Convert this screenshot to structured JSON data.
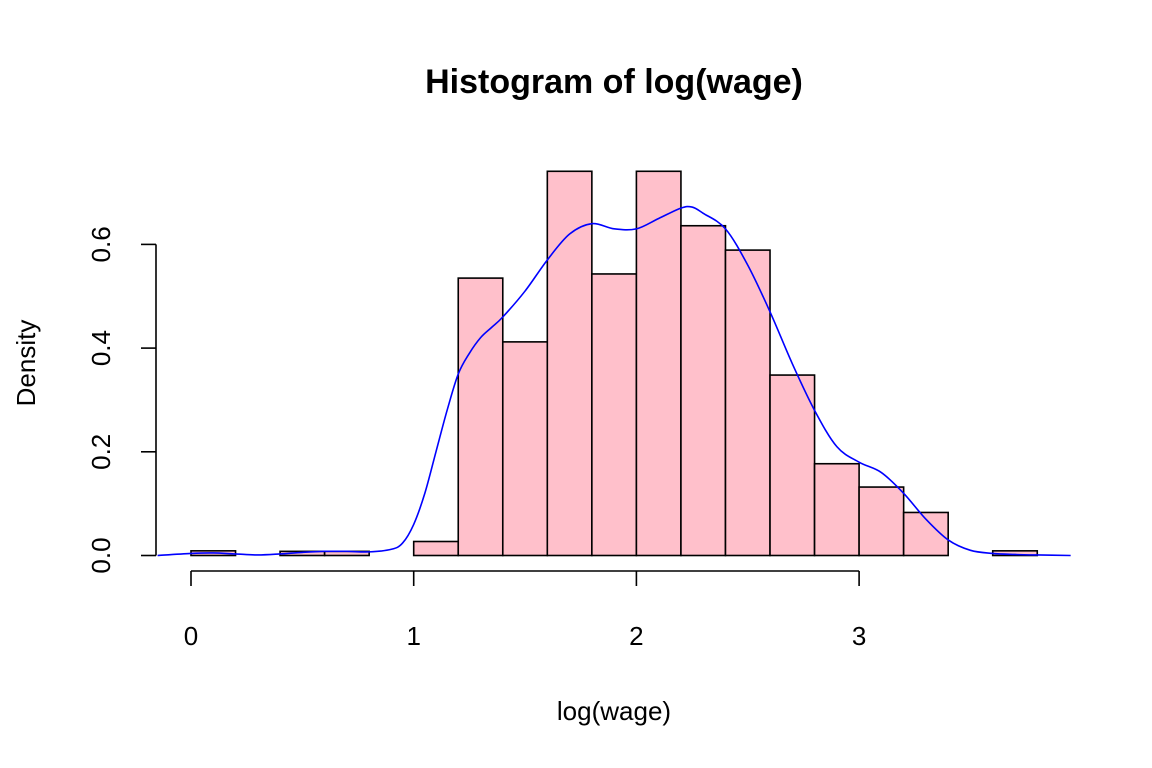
{
  "chart_data": {
    "type": "histogram",
    "title": "Histogram of log(wage)",
    "xlabel": "log(wage)",
    "ylabel": "Density",
    "x_ticks": [
      0,
      1,
      2,
      3
    ],
    "x_tick_labels": [
      "0",
      "1",
      "2",
      "3"
    ],
    "y_ticks": [
      0.0,
      0.2,
      0.4,
      0.6
    ],
    "y_tick_labels": [
      "0.0",
      "0.2",
      "0.4",
      "0.6"
    ],
    "xlim": [
      -0.15,
      3.95
    ],
    "ylim": [
      0,
      0.78
    ],
    "bar_color": "#ffc0cb",
    "bar_edge_color": "#000000",
    "bins": [
      {
        "x0": 0.0,
        "x1": 0.2,
        "density": 0.009
      },
      {
        "x0": 0.2,
        "x1": 0.4,
        "density": 0.0
      },
      {
        "x0": 0.4,
        "x1": 0.6,
        "density": 0.008
      },
      {
        "x0": 0.6,
        "x1": 0.8,
        "density": 0.008
      },
      {
        "x0": 0.8,
        "x1": 1.0,
        "density": 0.0
      },
      {
        "x0": 1.0,
        "x1": 1.2,
        "density": 0.027
      },
      {
        "x0": 1.2,
        "x1": 1.4,
        "density": 0.535
      },
      {
        "x0": 1.4,
        "x1": 1.6,
        "density": 0.412
      },
      {
        "x0": 1.6,
        "x1": 1.8,
        "density": 0.741
      },
      {
        "x0": 1.8,
        "x1": 2.0,
        "density": 0.543
      },
      {
        "x0": 2.0,
        "x1": 2.2,
        "density": 0.741
      },
      {
        "x0": 2.2,
        "x1": 2.4,
        "density": 0.636
      },
      {
        "x0": 2.4,
        "x1": 2.6,
        "density": 0.589
      },
      {
        "x0": 2.6,
        "x1": 2.8,
        "density": 0.348
      },
      {
        "x0": 2.8,
        "x1": 3.0,
        "density": 0.177
      },
      {
        "x0": 3.0,
        "x1": 3.2,
        "density": 0.132
      },
      {
        "x0": 3.2,
        "x1": 3.4,
        "density": 0.083
      },
      {
        "x0": 3.4,
        "x1": 3.6,
        "density": 0.0
      },
      {
        "x0": 3.6,
        "x1": 3.8,
        "density": 0.009
      }
    ],
    "density_line": {
      "color": "#0000ff",
      "x": [
        -0.15,
        0.0,
        0.1,
        0.2,
        0.3,
        0.4,
        0.5,
        0.6,
        0.7,
        0.8,
        0.9,
        0.95,
        1.0,
        1.05,
        1.1,
        1.15,
        1.2,
        1.25,
        1.3,
        1.35,
        1.4,
        1.5,
        1.6,
        1.7,
        1.8,
        1.9,
        2.0,
        2.1,
        2.2,
        2.25,
        2.3,
        2.4,
        2.5,
        2.6,
        2.7,
        2.8,
        2.9,
        3.0,
        3.1,
        3.2,
        3.3,
        3.4,
        3.5,
        3.6,
        3.7,
        3.8,
        3.95
      ],
      "y": [
        0.0,
        0.004,
        0.005,
        0.003,
        0.001,
        0.003,
        0.006,
        0.008,
        0.008,
        0.007,
        0.012,
        0.024,
        0.06,
        0.12,
        0.2,
        0.28,
        0.35,
        0.39,
        0.42,
        0.44,
        0.46,
        0.51,
        0.57,
        0.62,
        0.64,
        0.63,
        0.63,
        0.65,
        0.67,
        0.672,
        0.66,
        0.63,
        0.56,
        0.47,
        0.37,
        0.28,
        0.21,
        0.18,
        0.16,
        0.12,
        0.07,
        0.03,
        0.01,
        0.004,
        0.002,
        0.001,
        0.0
      ]
    }
  }
}
